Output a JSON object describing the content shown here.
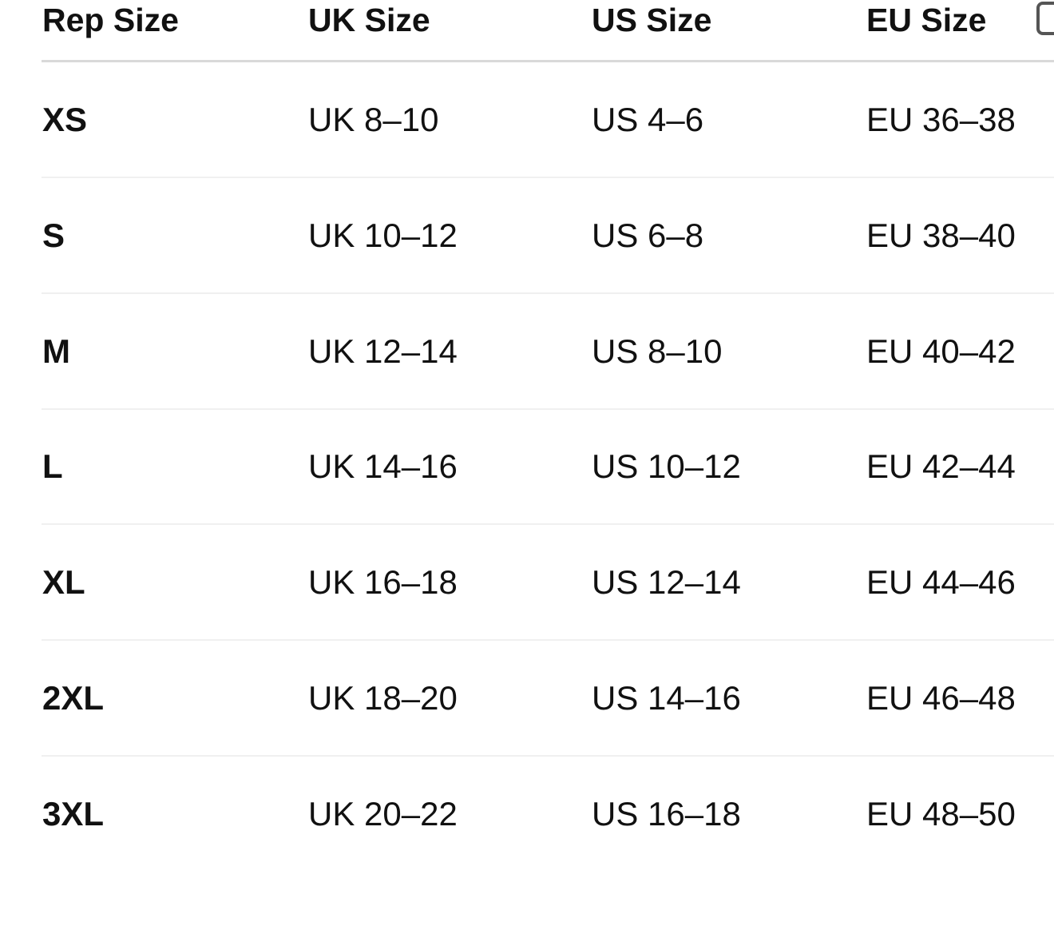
{
  "headers": [
    "Rep Size",
    "UK Size",
    "US Size",
    "EU Size"
  ],
  "rows": [
    [
      "XS",
      "UK 8–10",
      "US 4–6",
      "EU 36–38"
    ],
    [
      "S",
      "UK 10–12",
      "US 6–8",
      "EU 38–40"
    ],
    [
      "M",
      "UK 12–14",
      "US 8–10",
      "EU 40–42"
    ],
    [
      "L",
      "UK 14–16",
      "US 10–12",
      "EU 42–44"
    ],
    [
      "XL",
      "UK 16–18",
      "US 12–14",
      "EU 44–46"
    ],
    [
      "2XL",
      "UK 18–20",
      "US 14–16",
      "EU 46–48"
    ],
    [
      "3XL",
      "UK 20–22",
      "US 16–18",
      "EU 48–50"
    ]
  ],
  "icons": {
    "top_right": "copy-icon"
  }
}
